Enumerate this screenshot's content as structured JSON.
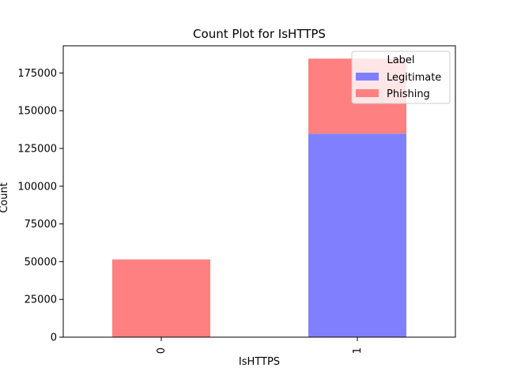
{
  "chart_data": {
    "type": "bar",
    "stacked": true,
    "title": "Count Plot for IsHTTPS",
    "xlabel": "IsHTTPS",
    "ylabel": "Count",
    "categories": [
      "0",
      "1"
    ],
    "series": [
      {
        "name": "Legitimate",
        "values": [
          0,
          134800
        ],
        "color": "#8080ff"
      },
      {
        "name": "Phishing",
        "values": [
          51500,
          49700
        ],
        "color": "#ff8080"
      }
    ],
    "ylim": [
      0,
      193000
    ],
    "yticks": [
      0,
      25000,
      50000,
      75000,
      100000,
      125000,
      150000,
      175000
    ],
    "grid": false,
    "legend": {
      "title": "Label",
      "placement": "top-right"
    }
  }
}
